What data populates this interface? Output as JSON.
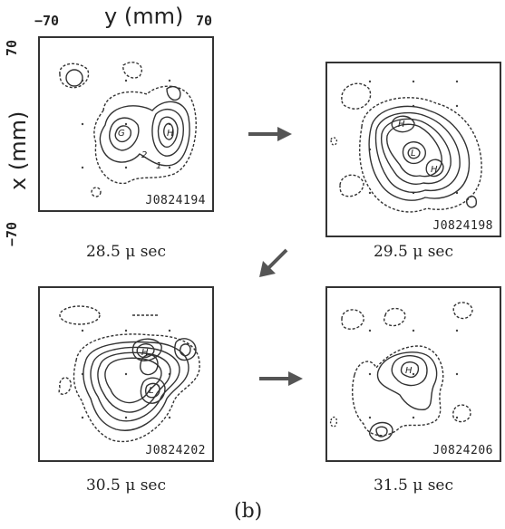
{
  "figure": {
    "label": "(b)",
    "y_axis_label": "y  (mm)",
    "x_axis_label": "x  (mm)",
    "y_min": "−70",
    "y_max": "70",
    "x_min": "−70",
    "x_max": "70"
  },
  "panels": [
    {
      "id": "J0824194",
      "time": "28.5 μ sec",
      "labels": [
        "G",
        "H",
        "2",
        "1"
      ]
    },
    {
      "id": "J0824198",
      "time": "29.5 μ sec",
      "labels": [
        "H",
        "L",
        "H"
      ]
    },
    {
      "id": "J0824202",
      "time": "30.5 μ sec",
      "labels": [
        "H",
        "L"
      ]
    },
    {
      "id": "J0824206",
      "time": "31.5 μ sec",
      "labels": [
        "H"
      ]
    }
  ]
}
